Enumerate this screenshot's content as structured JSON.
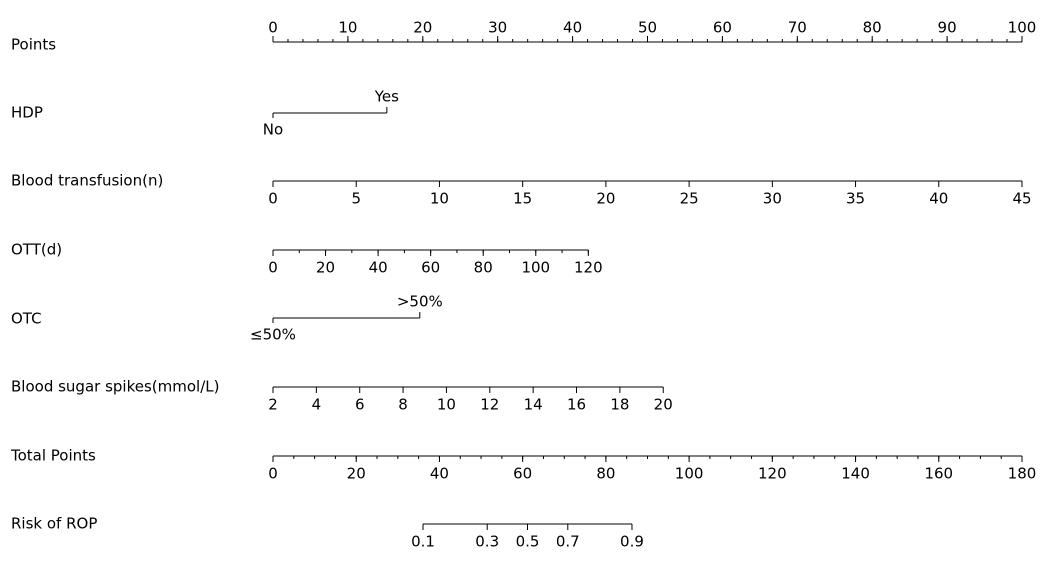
{
  "chart_data": {
    "type": "nomogram",
    "rows": [
      {
        "label": "Points",
        "kind": "scale",
        "xlim": [
          0,
          100
        ],
        "ticks": [
          0,
          10,
          20,
          30,
          40,
          50,
          60,
          70,
          80,
          90,
          100
        ],
        "minor_step": 2
      },
      {
        "label": "HDP",
        "kind": "categorical",
        "categories": [
          "No",
          "Yes"
        ],
        "values": [
          0,
          15.2
        ]
      },
      {
        "label": "Blood transfusion(n)",
        "kind": "continuous",
        "xlim": [
          0,
          45
        ],
        "points": [
          0,
          100
        ],
        "ticks": [
          0,
          5,
          10,
          15,
          20,
          25,
          30,
          35,
          40,
          45
        ]
      },
      {
        "label": "OTT(d)",
        "kind": "continuous",
        "xlim": [
          0,
          120
        ],
        "points": [
          0,
          42.1
        ],
        "ticks": [
          0,
          20,
          40,
          60,
          80,
          100,
          120
        ],
        "minor_step": 10
      },
      {
        "label": "OTC",
        "kind": "categorical",
        "categories": [
          "≤50%",
          ">50%"
        ],
        "values": [
          0,
          19.6
        ]
      },
      {
        "label": "Blood sugar spikes(mmol/L)",
        "kind": "continuous",
        "xlim": [
          2,
          20
        ],
        "points": [
          0,
          52.1
        ],
        "ticks": [
          2,
          4,
          6,
          8,
          10,
          12,
          14,
          16,
          18,
          20
        ]
      },
      {
        "label": "Total Points",
        "kind": "total",
        "xlim": [
          0,
          180
        ],
        "ticks": [
          0,
          20,
          40,
          60,
          80,
          100,
          120,
          140,
          160,
          180
        ],
        "minor_step": 5
      },
      {
        "label": "Risk of ROP",
        "kind": "risk",
        "scale": "logit",
        "xlim": [
          0.1,
          0.9
        ],
        "points": [
          36.05,
          86.27
        ],
        "ticks": [
          0.1,
          0.3,
          0.5,
          0.7,
          0.9
        ]
      }
    ]
  }
}
